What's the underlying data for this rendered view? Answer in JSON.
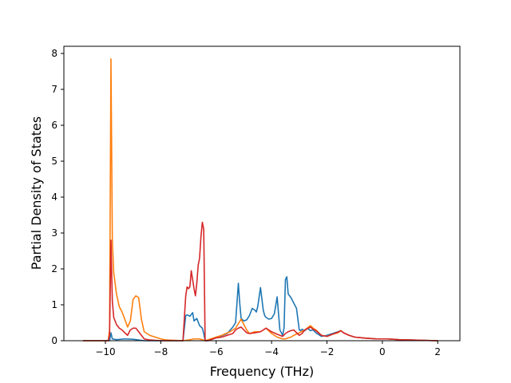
{
  "chart_data": {
    "type": "line",
    "title": "",
    "xlabel": "Frequency (THz)",
    "ylabel": "Partial Density of States",
    "xlim": [
      -11.5,
      2.8
    ],
    "ylim": [
      0,
      8.2
    ],
    "xticks": [
      -10,
      -8,
      -6,
      -4,
      -2,
      0,
      2
    ],
    "yticks": [
      0,
      1,
      2,
      3,
      4,
      5,
      6,
      7,
      8
    ],
    "xtick_labels": [
      "−10",
      "−8",
      "−6",
      "−4",
      "−2",
      "0",
      "2"
    ],
    "ytick_labels": [
      "0",
      "1",
      "2",
      "3",
      "4",
      "5",
      "6",
      "7",
      "8"
    ],
    "grid": false,
    "legend": "none",
    "series": [
      {
        "color": "#1f77b4",
        "x": [
          -10.8,
          -9.85,
          -9.8,
          -9.75,
          -9.6,
          -9.3,
          -9.0,
          -8.6,
          -7.2,
          -7.1,
          -7.05,
          -6.95,
          -6.85,
          -6.8,
          -6.7,
          -6.6,
          -6.5,
          -6.45,
          -6.4,
          -6.3,
          -6.0,
          -5.6,
          -5.4,
          -5.3,
          -5.2,
          -5.15,
          -5.1,
          -5.0,
          -4.9,
          -4.8,
          -4.7,
          -4.6,
          -4.55,
          -4.5,
          -4.4,
          -4.3,
          -4.25,
          -4.2,
          -4.1,
          -4.0,
          -3.9,
          -3.8,
          -3.7,
          -3.6,
          -3.55,
          -3.5,
          -3.45,
          -3.4,
          -3.35,
          -3.3,
          -3.2,
          -3.1,
          -3.0,
          -2.95,
          -2.9,
          -2.8,
          -2.7,
          -2.6,
          -2.5,
          -2.4,
          -2.2,
          -2.0,
          -1.8,
          -1.6,
          -1.5,
          -1.4,
          -1.2,
          -1.0,
          -0.6,
          -0.2,
          0.2,
          0.6,
          1.0,
          1.5,
          2.0
        ],
        "y": [
          0.0,
          0.0,
          0.22,
          0.05,
          0.03,
          0.05,
          0.04,
          0.0,
          0.0,
          0.7,
          0.72,
          0.68,
          0.78,
          0.55,
          0.62,
          0.42,
          0.35,
          0.2,
          0.0,
          0.0,
          0.08,
          0.2,
          0.38,
          0.5,
          1.6,
          1.05,
          0.62,
          0.55,
          0.58,
          0.7,
          0.9,
          0.85,
          0.8,
          0.95,
          1.48,
          0.85,
          0.7,
          0.65,
          0.6,
          0.62,
          0.75,
          1.22,
          0.3,
          0.15,
          0.35,
          1.7,
          1.78,
          1.3,
          1.25,
          1.2,
          1.05,
          0.9,
          0.3,
          0.28,
          0.32,
          0.28,
          0.35,
          0.28,
          0.3,
          0.22,
          0.12,
          0.15,
          0.2,
          0.25,
          0.28,
          0.22,
          0.15,
          0.1,
          0.07,
          0.05,
          0.05,
          0.03,
          0.02,
          0.01,
          0.0
        ]
      },
      {
        "color": "#ff7f0e",
        "x": [
          -10.8,
          -9.9,
          -9.85,
          -9.8,
          -9.75,
          -9.7,
          -9.6,
          -9.5,
          -9.4,
          -9.3,
          -9.2,
          -9.1,
          -9.0,
          -8.9,
          -8.8,
          -8.7,
          -8.6,
          -8.4,
          -8.2,
          -8.0,
          -7.8,
          -7.2,
          -7.0,
          -6.8,
          -6.6,
          -6.4,
          -6.2,
          -6.0,
          -5.8,
          -5.5,
          -5.3,
          -5.1,
          -5.0,
          -4.9,
          -4.8,
          -4.6,
          -4.4,
          -4.3,
          -4.2,
          -4.0,
          -3.8,
          -3.6,
          -3.5,
          -3.4,
          -3.3,
          -3.2,
          -3.0,
          -2.8,
          -2.6,
          -2.5,
          -2.4,
          -2.2,
          -2.0,
          -1.8,
          -1.6,
          -1.5,
          -1.4,
          -1.2,
          -1.0,
          -0.6,
          -0.2,
          0.2,
          0.6,
          1.0,
          1.5,
          2.0
        ],
        "y": [
          0.0,
          0.0,
          0.3,
          7.85,
          2.8,
          1.9,
          1.3,
          0.95,
          0.8,
          0.6,
          0.38,
          0.55,
          1.15,
          1.25,
          1.2,
          0.6,
          0.25,
          0.15,
          0.1,
          0.05,
          0.02,
          0.0,
          0.02,
          0.05,
          0.05,
          0.0,
          0.05,
          0.1,
          0.15,
          0.25,
          0.35,
          0.6,
          0.45,
          0.3,
          0.2,
          0.25,
          0.25,
          0.3,
          0.35,
          0.2,
          0.1,
          0.05,
          0.05,
          0.08,
          0.1,
          0.15,
          0.22,
          0.3,
          0.42,
          0.35,
          0.3,
          0.15,
          0.12,
          0.18,
          0.22,
          0.28,
          0.22,
          0.15,
          0.1,
          0.07,
          0.05,
          0.05,
          0.03,
          0.02,
          0.01,
          0.0
        ]
      },
      {
        "color": "#d62728",
        "x": [
          -10.8,
          -9.9,
          -9.85,
          -9.8,
          -9.75,
          -9.7,
          -9.6,
          -9.5,
          -9.4,
          -9.3,
          -9.2,
          -9.1,
          -9.0,
          -8.9,
          -8.8,
          -8.7,
          -8.6,
          -8.4,
          -8.2,
          -8.0,
          -7.8,
          -7.2,
          -7.1,
          -7.05,
          -7.0,
          -6.95,
          -6.9,
          -6.85,
          -6.8,
          -6.75,
          -6.7,
          -6.65,
          -6.6,
          -6.55,
          -6.5,
          -6.45,
          -6.4,
          -6.35,
          -6.3,
          -6.0,
          -5.8,
          -5.6,
          -5.4,
          -5.3,
          -5.2,
          -5.1,
          -5.0,
          -4.9,
          -4.8,
          -4.6,
          -4.4,
          -4.3,
          -4.2,
          -4.0,
          -3.8,
          -3.6,
          -3.5,
          -3.4,
          -3.3,
          -3.2,
          -3.0,
          -2.9,
          -2.8,
          -2.6,
          -2.5,
          -2.4,
          -2.2,
          -2.0,
          -1.8,
          -1.6,
          -1.5,
          -1.4,
          -1.2,
          -1.0,
          -0.6,
          -0.2,
          0.2,
          0.6,
          1.0,
          1.5,
          2.0
        ],
        "y": [
          0.0,
          0.0,
          0.15,
          2.8,
          1.1,
          0.65,
          0.45,
          0.35,
          0.3,
          0.22,
          0.15,
          0.3,
          0.35,
          0.35,
          0.25,
          0.15,
          0.05,
          0.02,
          0.01,
          0.0,
          0.0,
          0.0,
          1.25,
          1.5,
          1.45,
          1.5,
          1.95,
          1.7,
          1.45,
          1.25,
          1.6,
          2.1,
          2.3,
          2.9,
          3.3,
          3.1,
          0.0,
          0.0,
          0.0,
          0.08,
          0.1,
          0.15,
          0.2,
          0.3,
          0.35,
          0.38,
          0.3,
          0.22,
          0.2,
          0.22,
          0.25,
          0.3,
          0.35,
          0.25,
          0.18,
          0.12,
          0.2,
          0.25,
          0.28,
          0.3,
          0.15,
          0.2,
          0.3,
          0.38,
          0.32,
          0.28,
          0.15,
          0.12,
          0.18,
          0.24,
          0.28,
          0.22,
          0.15,
          0.1,
          0.07,
          0.05,
          0.05,
          0.03,
          0.02,
          0.01,
          0.0
        ]
      }
    ]
  }
}
